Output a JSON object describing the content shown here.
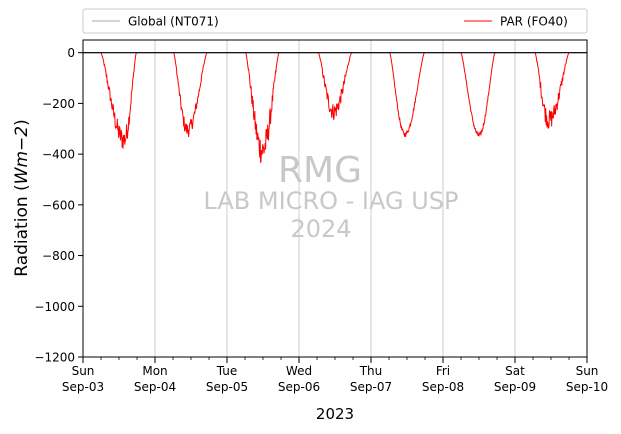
{
  "chart_data": {
    "type": "line",
    "ylabel_main": "Radiation (",
    "ylabel_unit": "Wm−2",
    "ylabel_close": ")",
    "xlabel": "2023",
    "ylim": [
      -1200,
      50
    ],
    "xlim": [
      0,
      7
    ],
    "yticks": [
      {
        "value": 0,
        "label": "0"
      },
      {
        "value": -200,
        "label": "−200"
      },
      {
        "value": -400,
        "label": "−400"
      },
      {
        "value": -600,
        "label": "−600"
      },
      {
        "value": -800,
        "label": "−800"
      },
      {
        "value": -1000,
        "label": "−1000"
      },
      {
        "value": -1200,
        "label": "−1200"
      }
    ],
    "xticks": [
      {
        "value": 0,
        "day": "Sun",
        "date": "Sep-03"
      },
      {
        "value": 1,
        "day": "Mon",
        "date": "Sep-04"
      },
      {
        "value": 2,
        "day": "Tue",
        "date": "Sep-05"
      },
      {
        "value": 3,
        "day": "Wed",
        "date": "Sep-06"
      },
      {
        "value": 4,
        "day": "Thu",
        "date": "Sep-07"
      },
      {
        "value": 5,
        "day": "Fri",
        "date": "Sep-08"
      },
      {
        "value": 6,
        "day": "Sat",
        "date": "Sep-09"
      },
      {
        "value": 7,
        "day": "Sun",
        "date": "Sep-10"
      }
    ],
    "grid": "vertical",
    "legend_placement": "top, outside",
    "watermark": [
      "RMG",
      "LAB MICRO - IAG USP",
      "2024"
    ],
    "series": [
      {
        "name": "Global (NT071)",
        "color": "#aaaaaa",
        "x": [
          0,
          7
        ],
        "y": [
          0,
          0
        ]
      },
      {
        "name": "PAR (FO40)",
        "color": "#ff0000",
        "daily": [
          {
            "start": 0.25,
            "peak": 0.57,
            "end": 0.74,
            "dip": -410,
            "noise": 90
          },
          {
            "start": 1.26,
            "peak": 1.45,
            "end": 1.72,
            "dip": -360,
            "noise": 60
          },
          {
            "start": 2.26,
            "peak": 2.49,
            "end": 2.72,
            "dip": -465,
            "noise": 120
          },
          {
            "start": 3.27,
            "peak": 3.48,
            "end": 3.73,
            "dip": -280,
            "noise": 70
          },
          {
            "start": 4.26,
            "peak": 4.47,
            "end": 4.74,
            "dip": -370,
            "noise": 20
          },
          {
            "start": 5.25,
            "peak": 5.5,
            "end": 5.72,
            "dip": -375,
            "noise": 20
          },
          {
            "start": 6.28,
            "peak": 6.47,
            "end": 6.75,
            "dip": -320,
            "noise": 80
          }
        ]
      }
    ]
  }
}
